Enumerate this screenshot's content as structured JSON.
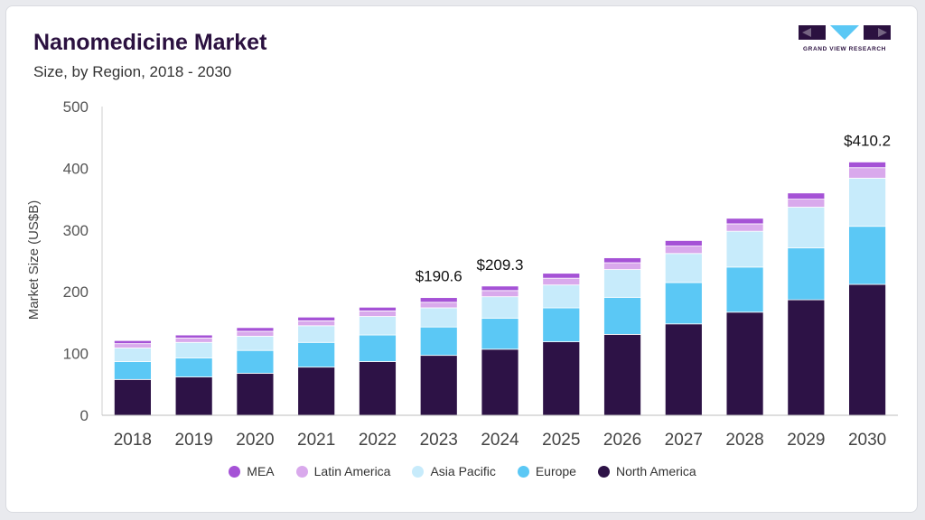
{
  "header": {
    "title": "Nanomedicine Market",
    "subtitle": "Size, by Region, 2018 - 2030"
  },
  "logo": {
    "text": "GRAND VIEW RESEARCH",
    "color": "#2b1140",
    "accent": "#5bc8f5"
  },
  "chart_data": {
    "type": "bar",
    "stacked": true,
    "categories": [
      "2018",
      "2019",
      "2020",
      "2021",
      "2022",
      "2023",
      "2024",
      "2025",
      "2026",
      "2027",
      "2028",
      "2029",
      "2030"
    ],
    "ylabel": "Market Size (US$B)",
    "ylim": [
      0,
      500
    ],
    "yticks": [
      0,
      100,
      200,
      300,
      400,
      500
    ],
    "grid": false,
    "legend_position": "bottom",
    "series": [
      {
        "name": "North America",
        "color": "#2d1246",
        "values": [
          58,
          62,
          68,
          78,
          87,
          97,
          107,
          119,
          131,
          148,
          167,
          187,
          212
        ]
      },
      {
        "name": "Europe",
        "color": "#5bc8f5",
        "values": [
          29,
          31,
          37,
          40,
          43,
          46,
          50,
          55,
          60,
          67,
          73,
          84,
          94
        ]
      },
      {
        "name": "Asia Pacific",
        "color": "#c7ebfb",
        "values": [
          22,
          25,
          23,
          27,
          30,
          31,
          35,
          37,
          45,
          47,
          58,
          66,
          78
        ]
      },
      {
        "name": "Latin America",
        "color": "#d9a9ec",
        "values": [
          7,
          7,
          8,
          8,
          9,
          9,
          10,
          11,
          11,
          12,
          12,
          13,
          17
        ]
      },
      {
        "name": "MEA",
        "color": "#a552d6",
        "values": [
          5,
          5,
          6,
          6,
          6,
          7.6,
          7.3,
          8,
          8,
          9,
          9,
          10,
          9.2
        ]
      }
    ],
    "annotations": [
      {
        "category": "2023",
        "label": "$190.6"
      },
      {
        "category": "2024",
        "label": "$209.3"
      },
      {
        "category": "2030",
        "label": "$410.2"
      }
    ]
  }
}
